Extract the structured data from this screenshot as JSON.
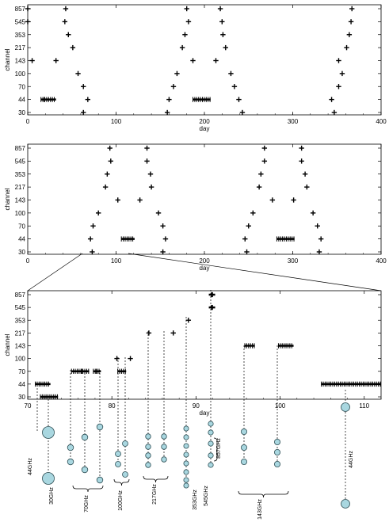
{
  "chart_data": [
    {
      "id": "panel1",
      "type": "scatter",
      "xlabel": "day",
      "ylabel": "channel",
      "xlim": [
        0,
        400
      ],
      "x_ticks": [
        0,
        100,
        200,
        300,
        400
      ],
      "categories": [
        "30",
        "44",
        "70",
        "100",
        "143",
        "217",
        "353",
        "545",
        "857"
      ],
      "marker": "+",
      "points": [
        {
          "ch": "857",
          "x": [
            0,
            43,
            180,
            218,
            367
          ]
        },
        {
          "ch": "545",
          "x": [
            0,
            42,
            182,
            220,
            366
          ]
        },
        {
          "ch": "353",
          "x": [
            46,
            178,
            221,
            364
          ]
        },
        {
          "ch": "217",
          "x": [
            51,
            175,
            224,
            361
          ]
        },
        {
          "ch": "143",
          "x": [
            5,
            32,
            187,
            213,
            352
          ]
        },
        {
          "ch": "100",
          "x": [
            57,
            169,
            230,
            356
          ]
        },
        {
          "ch": "70",
          "x": [
            63,
            165,
            234,
            352
          ]
        },
        {
          "ch": "44",
          "x": [
            19,
            68,
            160,
            239,
            344
          ]
        },
        {
          "ch": "30",
          "x": [
            63,
            158,
            243,
            347
          ]
        }
      ],
      "ranges": [
        {
          "ch": "44",
          "x0": 15,
          "x1": 32
        },
        {
          "ch": "44",
          "x0": 187,
          "x1": 207
        }
      ]
    },
    {
      "id": "panel2",
      "type": "scatter",
      "xlabel": "day",
      "ylabel": "channel",
      "xlim": [
        0,
        400
      ],
      "x_ticks": [
        0,
        100,
        200,
        300,
        400
      ],
      "categories": [
        "30",
        "44",
        "70",
        "100",
        "143",
        "217",
        "353",
        "545",
        "857"
      ],
      "marker": "+",
      "points": [
        {
          "ch": "857",
          "x": [
            93,
            135,
            268,
            310
          ]
        },
        {
          "ch": "545",
          "x": [
            94,
            135,
            268,
            310
          ]
        },
        {
          "ch": "353",
          "x": [
            90,
            139,
            264,
            314
          ]
        },
        {
          "ch": "217",
          "x": [
            88,
            140,
            262,
            316
          ]
        },
        {
          "ch": "143",
          "x": [
            102,
            127,
            277,
            301
          ]
        },
        {
          "ch": "100",
          "x": [
            80,
            148,
            255,
            323
          ]
        },
        {
          "ch": "70",
          "x": [
            74,
            153,
            250,
            328
          ]
        },
        {
          "ch": "44",
          "x": [
            71,
            156,
            246,
            332
          ]
        },
        {
          "ch": "30",
          "x": [
            73,
            153,
            248,
            330
          ]
        }
      ],
      "ranges": [
        {
          "ch": "44",
          "x0": 106,
          "x1": 121
        },
        {
          "ch": "44",
          "x0": 282,
          "x1": 302
        }
      ]
    },
    {
      "id": "panel3",
      "type": "scatter",
      "xlabel": "day",
      "ylabel": "channel",
      "xlim": [
        70,
        112
      ],
      "x_ticks": [
        70,
        80,
        90,
        100,
        110
      ],
      "categories": [
        "30",
        "44",
        "70",
        "100",
        "143",
        "217",
        "353",
        "545",
        "857"
      ],
      "marker": "+",
      "points": [
        {
          "ch": "857",
          "x": [
            91.9
          ]
        },
        {
          "ch": "545",
          "x": [
            91.9
          ]
        },
        {
          "ch": "353",
          "x": [
            89.1
          ]
        },
        {
          "ch": "217",
          "x": [
            84.4,
            87.3
          ]
        },
        {
          "ch": "100",
          "x": [
            80.6,
            82.2
          ]
        },
        {
          "ch": "70",
          "x": [
            76.4,
            78.2
          ]
        }
      ],
      "ranges": [
        {
          "ch": "143",
          "x0": 95.8,
          "x1": 97.0
        },
        {
          "ch": "143",
          "x0": 99.8,
          "x1": 101.6
        },
        {
          "ch": "70",
          "x0": 75.2,
          "x1": 77.3
        },
        {
          "ch": "70",
          "x0": 77.8,
          "x1": 78.7
        },
        {
          "ch": "70",
          "x0": 80.7,
          "x1": 81.7
        },
        {
          "ch": "44",
          "x0": 70.9,
          "x1": 72.7
        },
        {
          "ch": "44",
          "x0": 104.9,
          "x1": 112
        },
        {
          "ch": "30",
          "x0": 71.5,
          "x1": 73.6
        }
      ]
    }
  ],
  "frequency_labels": [
    {
      "name": "44GHz",
      "text": "44GHz"
    },
    {
      "name": "30GHz",
      "text": "30GHz"
    },
    {
      "name": "70GHz",
      "text": "70GHz"
    },
    {
      "name": "100GHz",
      "text": "100GHz"
    },
    {
      "name": "217GHz",
      "text": "217GHz"
    },
    {
      "name": "353GHz",
      "text": "353GHz"
    },
    {
      "name": "545GHz",
      "text": "545GHz"
    },
    {
      "name": "857GHz",
      "text": "857GHz"
    },
    {
      "name": "143GHz",
      "text": "143GHz"
    },
    {
      "name": "44GHz-right",
      "text": "44GHz"
    }
  ],
  "colors": {
    "marker": "#000000",
    "circle_fill": "#a9d7e0",
    "circle_stroke": "#2f4f55"
  }
}
